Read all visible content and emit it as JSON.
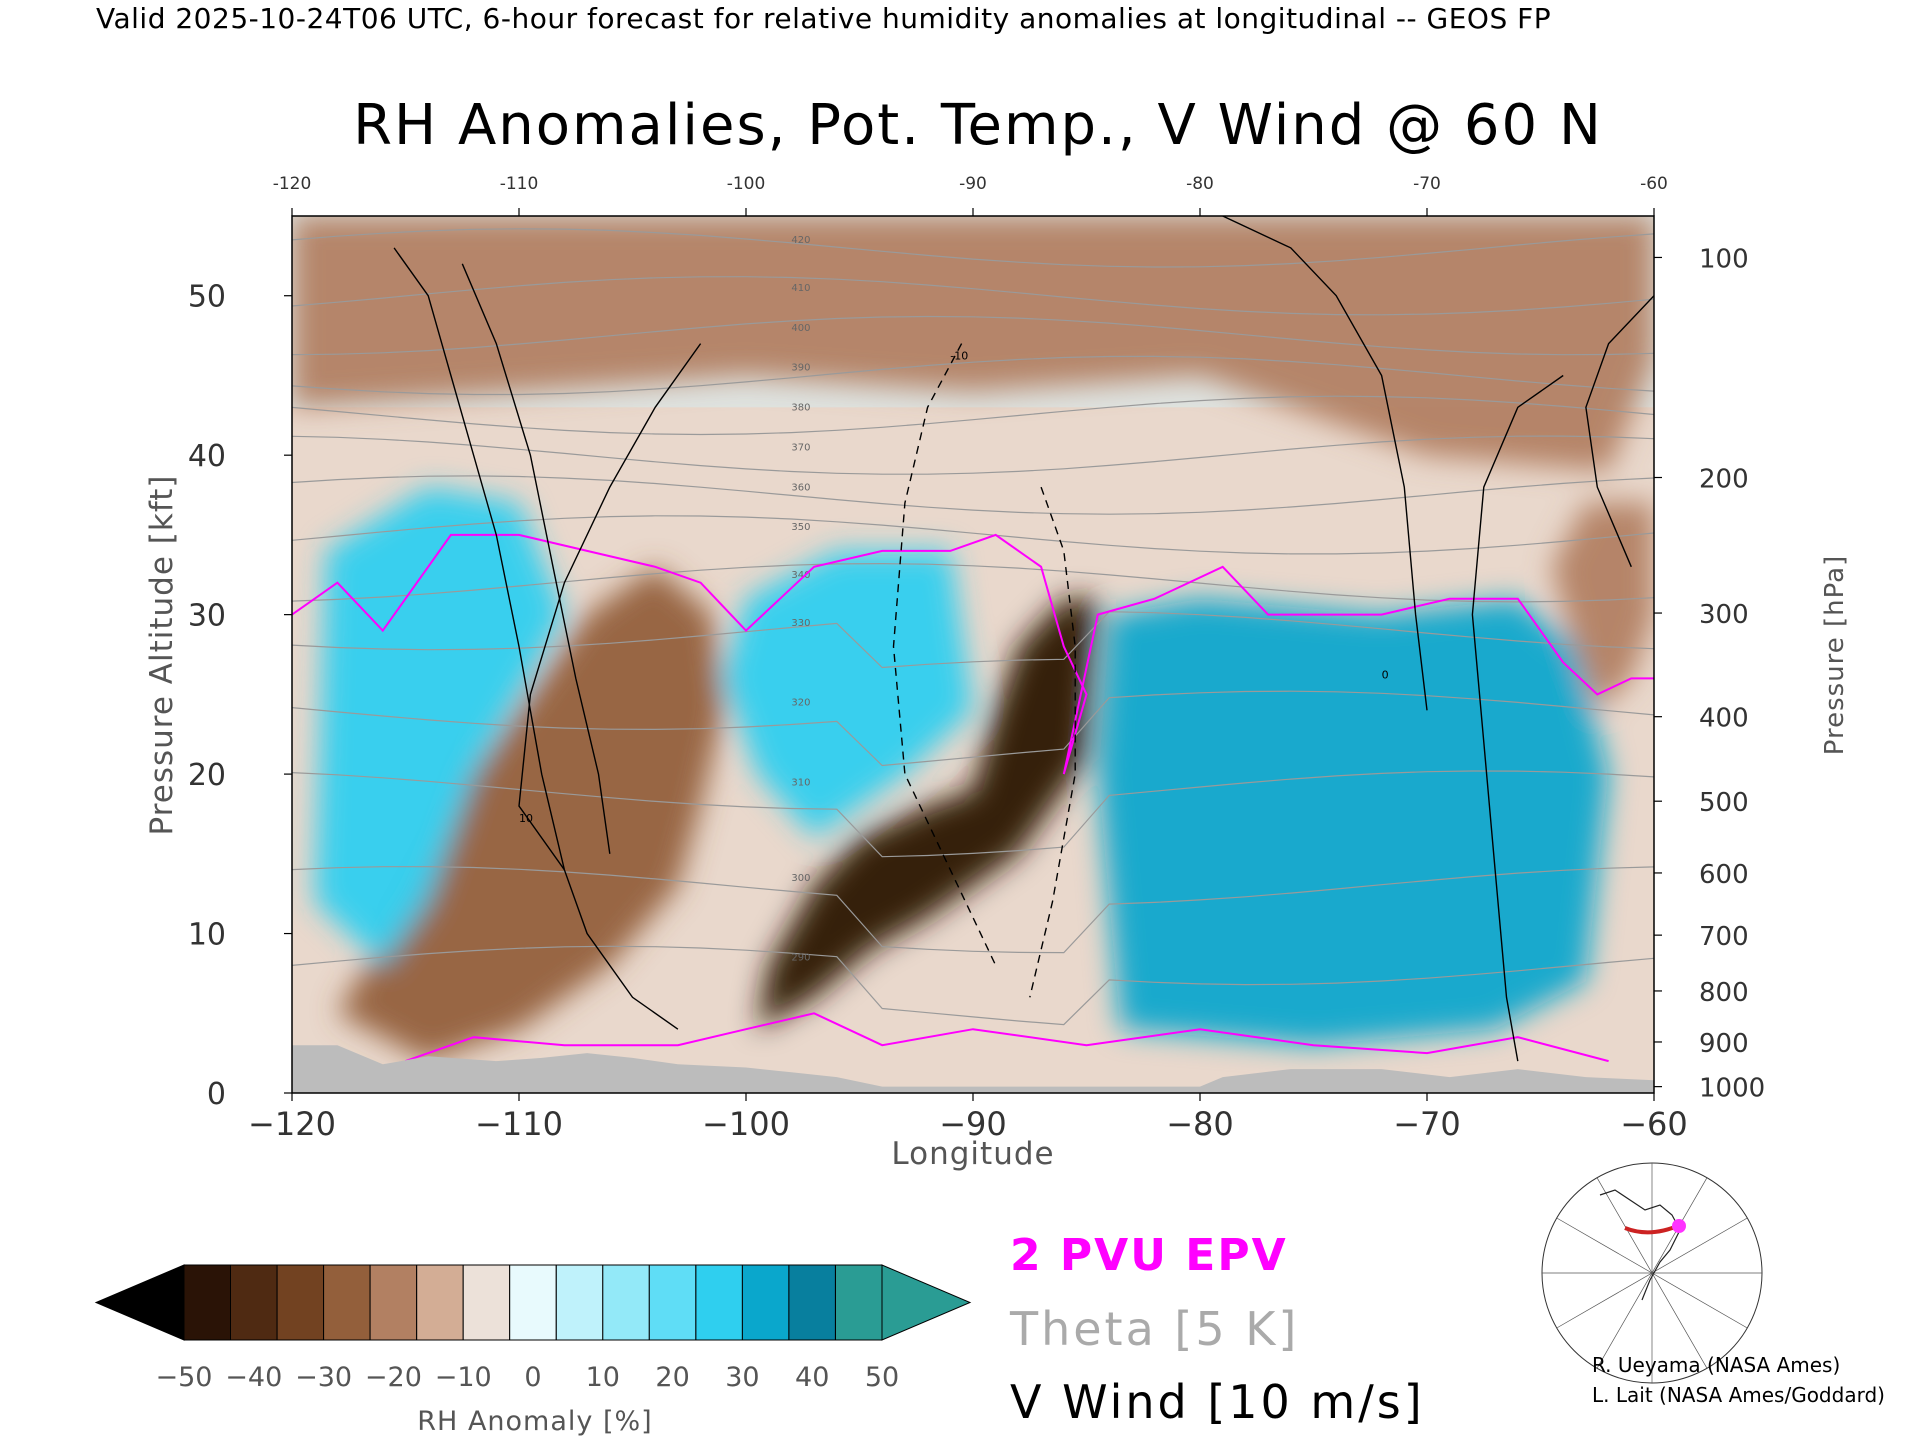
{
  "header": "Valid 2025-10-24T06 UTC, 6-hour forecast for relative humidity anomalies at longitudinal -- GEOS FP",
  "chart_data": {
    "type": "heatmap",
    "title": "RH Anomalies, Pot. Temp., V Wind @ 60 N",
    "xlabel": "Longitude",
    "ylabel": "Pressure Altitude [kft]",
    "y2label": "Pressure [hPa]",
    "xlim": [
      -120,
      -60
    ],
    "ylim": [
      0,
      55
    ],
    "x_ticks": [
      -120,
      -110,
      -100,
      -90,
      -80,
      -70,
      -60
    ],
    "x_tick_labels": [
      "−120",
      "−110",
      "−100",
      "−90",
      "−80",
      "−70",
      "−60"
    ],
    "x_top_tick_labels": [
      "-120",
      "-110",
      "-100",
      "-90",
      "-80",
      "-70",
      "-60"
    ],
    "y_ticks": [
      0,
      10,
      20,
      30,
      40,
      50
    ],
    "pressure_ticks": [
      {
        "label": "100",
        "kft": 52.4
      },
      {
        "label": "200",
        "kft": 38.6
      },
      {
        "label": "300",
        "kft": 30.1
      },
      {
        "label": "400",
        "kft": 23.6
      },
      {
        "label": "500",
        "kft": 18.3
      },
      {
        "label": "600",
        "kft": 13.8
      },
      {
        "label": "700",
        "kft": 9.9
      },
      {
        "label": "800",
        "kft": 6.4
      },
      {
        "label": "900",
        "kft": 3.2
      },
      {
        "label": "1000",
        "kft": 0.4
      }
    ],
    "theta_contours": [
      "290",
      "300",
      "310",
      "320",
      "330",
      "340",
      "350",
      "360",
      "370",
      "380",
      "390",
      "400",
      "410",
      "420"
    ],
    "wind_contour_labels": [
      "0",
      "10",
      "-10"
    ],
    "anomaly_regions": [
      {
        "kind": "dry",
        "anomaly": -50,
        "points": [
          [
            -99.5,
            4
          ],
          [
            -97,
            6
          ],
          [
            -94.5,
            9
          ],
          [
            -92,
            11
          ],
          [
            -88,
            15
          ],
          [
            -85,
            21
          ],
          [
            -84.5,
            31
          ],
          [
            -86,
            31
          ],
          [
            -88,
            28
          ],
          [
            -89,
            24
          ],
          [
            -90,
            19
          ],
          [
            -92,
            18
          ],
          [
            -95,
            16
          ],
          [
            -97,
            13
          ],
          [
            -99,
            8
          ]
        ]
      },
      {
        "kind": "dry",
        "anomaly": -30,
        "points": [
          [
            -114,
            2
          ],
          [
            -110,
            4
          ],
          [
            -106,
            8
          ],
          [
            -103,
            13
          ],
          [
            -102,
            18
          ],
          [
            -101,
            24
          ],
          [
            -101.5,
            30
          ],
          [
            -104,
            33
          ],
          [
            -107,
            30
          ],
          [
            -109,
            26
          ],
          [
            -112,
            20
          ],
          [
            -115,
            12
          ],
          [
            -118,
            5
          ]
        ]
      },
      {
        "kind": "dry",
        "anomaly": -25,
        "points": [
          [
            -62.5,
            24
          ],
          [
            -61,
            26
          ],
          [
            -60,
            30
          ],
          [
            -60,
            37
          ],
          [
            -63,
            37
          ],
          [
            -64.5,
            33
          ],
          [
            -63.5,
            28
          ]
        ]
      },
      {
        "kind": "dry",
        "anomaly": -20,
        "points": [
          [
            -120,
            43
          ],
          [
            -100,
            45
          ],
          [
            -90,
            44
          ],
          [
            -80,
            45
          ],
          [
            -70,
            40
          ],
          [
            -62,
            39
          ],
          [
            -60,
            46
          ],
          [
            -60,
            55
          ],
          [
            -120,
            55
          ]
        ]
      },
      {
        "kind": "moist",
        "anomaly": 30,
        "points": [
          [
            -118.5,
            34
          ],
          [
            -114,
            38
          ],
          [
            -110,
            37
          ],
          [
            -108,
            30
          ],
          [
            -112,
            20
          ],
          [
            -114,
            12
          ],
          [
            -116,
            8
          ],
          [
            -119,
            12
          ]
        ]
      },
      {
        "kind": "moist",
        "anomaly": 30,
        "points": [
          [
            -100,
            31
          ],
          [
            -96,
            34
          ],
          [
            -91,
            34
          ],
          [
            -90,
            24
          ],
          [
            -93,
            20
          ],
          [
            -97,
            16
          ],
          [
            -99.5,
            20
          ],
          [
            -101,
            26
          ]
        ]
      },
      {
        "kind": "moist",
        "anomaly": 35,
        "points": [
          [
            -83.5,
            4
          ],
          [
            -75,
            3
          ],
          [
            -67,
            4
          ],
          [
            -63,
            7
          ],
          [
            -62,
            20
          ],
          [
            -63.5,
            28
          ],
          [
            -66,
            31
          ],
          [
            -72,
            30
          ],
          [
            -80,
            31
          ],
          [
            -84,
            30
          ],
          [
            -84.5,
            20
          ]
        ]
      }
    ],
    "colorbar": {
      "label": "RH Anomaly [%]",
      "tick_labels": [
        "−50",
        "−40",
        "−30",
        "−20",
        "−10",
        "0",
        "10",
        "20",
        "30",
        "40",
        "50"
      ],
      "colors": [
        "#2a1306",
        "#4f2a12",
        "#724221",
        "#935f3b",
        "#b28062",
        "#d3ad95",
        "#ece1d9",
        "#e8fafd",
        "#bff2fb",
        "#93e9f8",
        "#5fddf6",
        "#2fcfef",
        "#0aa7cc",
        "#087f9e",
        "#2a9c94"
      ],
      "extend_low_color": "#000000",
      "extend_high_color": "#2a9c94"
    },
    "legend": [
      {
        "text": "2 PVU EPV",
        "color": "#ff00ff"
      },
      {
        "text": "Theta [5 K]",
        "color": "#aaaaaa"
      },
      {
        "text": "V Wind [10 m/s]",
        "color": "#000000"
      }
    ]
  },
  "credits": [
    "R. Ueyama (NASA Ames)",
    "L. Lait (NASA Ames/Goddard)"
  ],
  "map": {
    "icon": "polar-map-inset",
    "marker_color": "#ff33ff",
    "line_color": "#cc2222"
  }
}
